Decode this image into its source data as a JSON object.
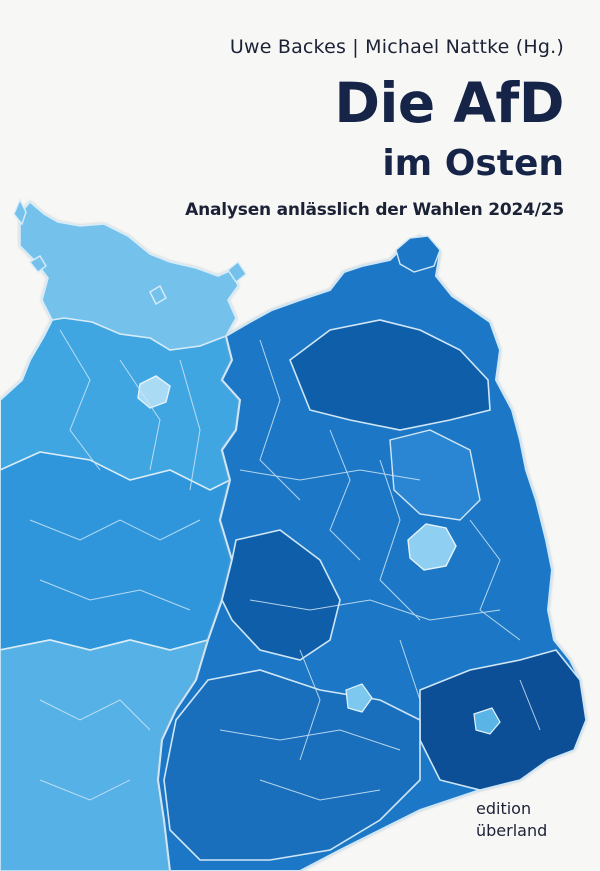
{
  "cover": {
    "authors": "Uwe Backes | Michael Nattke (Hg.)",
    "title": "Die AfD",
    "title_line2": "im Osten",
    "subtitle": "Analysen anlässlich der Wahlen 2024/25",
    "publisher_line1": "edition",
    "publisher_line2": "überland"
  },
  "colors": {
    "background": "#f7f7f5",
    "title": "#152447",
    "map_light": "#7cc8ee",
    "map_mid": "#2f8fd8",
    "map_dark": "#0d5ea8",
    "region_border": "#cfe6f6"
  }
}
